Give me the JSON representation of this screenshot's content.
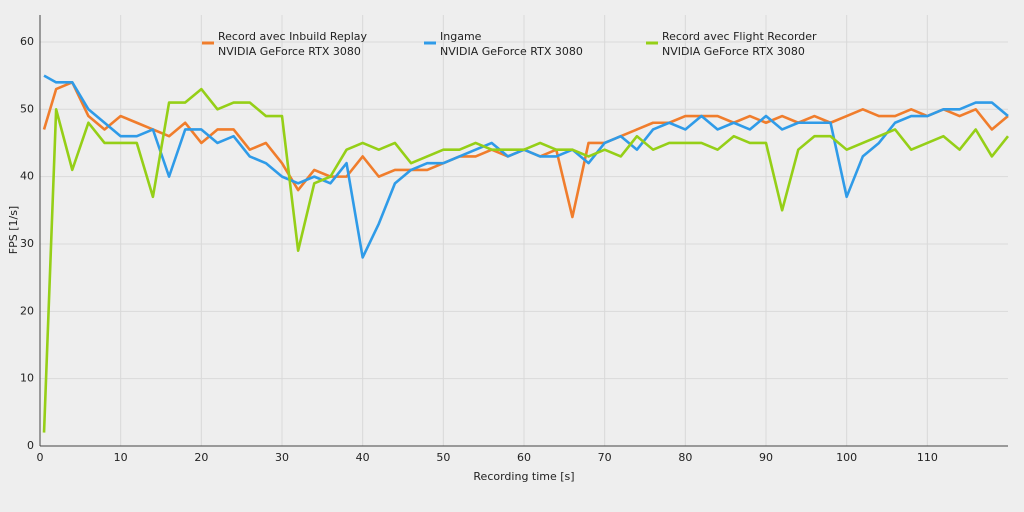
{
  "chart_data": {
    "type": "line",
    "x_label": "Recording time [s]",
    "y_label": "FPS [1/s]",
    "x": [
      0.5,
      2,
      4,
      6,
      8,
      10,
      12,
      14,
      16,
      18,
      20,
      22,
      24,
      26,
      28,
      30,
      32,
      34,
      36,
      38,
      40,
      42,
      44,
      46,
      48,
      50,
      52,
      54,
      56,
      58,
      60,
      62,
      64,
      66,
      68,
      70,
      72,
      74,
      76,
      78,
      80,
      82,
      84,
      86,
      88,
      90,
      92,
      94,
      96,
      98,
      100,
      102,
      104,
      106,
      108,
      110,
      112,
      114,
      116,
      118,
      120
    ],
    "series": [
      {
        "name": "Record avec Inbuild Replay",
        "device": "NVIDIA GeForce RTX 3080",
        "color": "#f07d2c",
        "values": [
          47,
          53,
          54,
          49,
          47,
          49,
          48,
          47,
          46,
          48,
          45,
          47,
          47,
          44,
          45,
          42,
          38,
          41,
          40,
          40,
          43,
          40,
          41,
          41,
          41,
          42,
          43,
          43,
          44,
          43,
          44,
          43,
          44,
          34,
          45,
          45,
          46,
          47,
          48,
          48,
          49,
          49,
          49,
          48,
          49,
          48,
          49,
          48,
          49,
          48,
          49,
          50,
          49,
          49,
          50,
          49,
          50,
          49,
          50,
          47,
          49
        ]
      },
      {
        "name": "Ingame",
        "device": "NVIDIA GeForce RTX 3080",
        "color": "#2f9be8",
        "values": [
          55,
          54,
          54,
          50,
          48,
          46,
          46,
          47,
          40,
          47,
          47,
          45,
          46,
          43,
          42,
          40,
          39,
          40,
          39,
          42,
          28,
          33,
          39,
          41,
          42,
          42,
          43,
          44,
          45,
          43,
          44,
          43,
          43,
          44,
          42,
          45,
          46,
          44,
          47,
          48,
          47,
          49,
          47,
          48,
          47,
          49,
          47,
          48,
          48,
          48,
          37,
          43,
          45,
          48,
          49,
          49,
          50,
          50,
          51,
          51,
          49
        ]
      },
      {
        "name": "Record avec Flight Recorder",
        "device": "NVIDIA GeForce RTX 3080",
        "color": "#95cf17",
        "values": [
          2,
          50,
          41,
          48,
          45,
          45,
          45,
          37,
          51,
          51,
          53,
          50,
          51,
          51,
          49,
          49,
          29,
          39,
          40,
          44,
          45,
          44,
          45,
          42,
          43,
          44,
          44,
          45,
          44,
          44,
          44,
          45,
          44,
          44,
          43,
          44,
          43,
          46,
          44,
          45,
          45,
          45,
          44,
          46,
          45,
          45,
          35,
          44,
          46,
          46,
          44,
          45,
          46,
          47,
          44,
          45,
          46,
          44,
          47,
          43,
          46
        ]
      }
    ],
    "xlim": [
      0,
      120
    ],
    "ylim": [
      0,
      64
    ],
    "xticks": [
      0,
      10,
      20,
      30,
      40,
      50,
      60,
      70,
      80,
      90,
      100,
      110
    ],
    "yticks": [
      0,
      10,
      20,
      30,
      40,
      50,
      60
    ],
    "grid": true
  }
}
